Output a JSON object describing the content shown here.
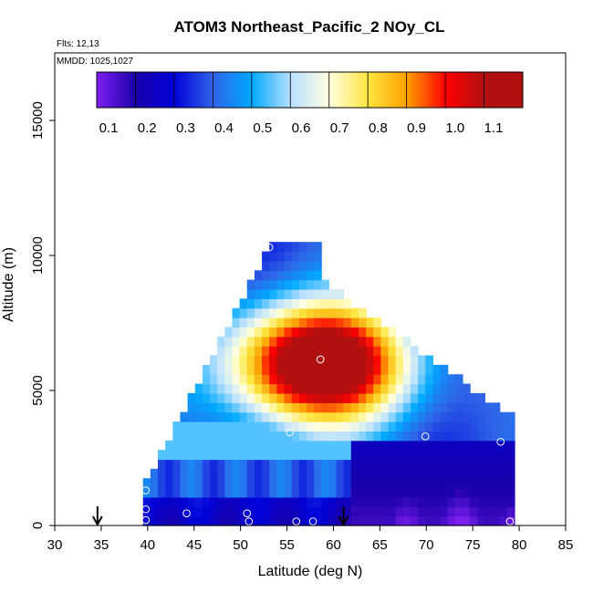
{
  "chart_data": {
    "type": "heatmap",
    "title": "ATOM3 Northeast_Pacific_2 NOy_CL",
    "annotations": [
      "Flts: 12,13",
      "MMDD: 1025,1027"
    ],
    "xlabel": "Latitude (deg N)",
    "ylabel": "Altitude (m)",
    "xlim": [
      30,
      85
    ],
    "ylim": [
      0,
      17500
    ],
    "xticks": [
      "30",
      "35",
      "40",
      "45",
      "50",
      "55",
      "60",
      "65",
      "70",
      "75",
      "80",
      "85"
    ],
    "yticks": [
      "0",
      "5000",
      "10000",
      "15000"
    ],
    "colorbar": {
      "placement": "top-inside",
      "range": [
        0.05,
        1.17
      ],
      "ticks": [
        "0.1",
        "0.2",
        "0.3",
        "0.4",
        "0.5",
        "0.6",
        "0.7",
        "0.8",
        "0.9",
        "1.0",
        "1.1"
      ],
      "colors": [
        "#7d1ff0",
        "#1a00a8",
        "#0000d8",
        "#2f64e8",
        "#00aaff",
        "#b8e0ff",
        "#ffffe0",
        "#ffe640",
        "#ffa000",
        "#ff0000",
        "#b01010"
      ]
    },
    "field": {
      "lat_range": [
        39.5,
        79
      ],
      "alt_range": [
        0,
        10500
      ],
      "peak": {
        "lat": 58.5,
        "alt": 6000,
        "value": 1.05
      },
      "low_region": {
        "lat": 70,
        "alt": 1500,
        "value": 0.08
      }
    },
    "markers": {
      "arrows_lat": [
        34.6,
        61.1
      ],
      "points": [
        {
          "lat": 53.1,
          "alt": 10300
        },
        {
          "lat": 58.6,
          "alt": 6150
        },
        {
          "lat": 55.3,
          "alt": 3450
        },
        {
          "lat": 69.9,
          "alt": 3300
        },
        {
          "lat": 78.0,
          "alt": 3100
        },
        {
          "lat": 39.8,
          "alt": 1300
        },
        {
          "lat": 39.8,
          "alt": 600
        },
        {
          "lat": 39.8,
          "alt": 200
        },
        {
          "lat": 44.2,
          "alt": 450
        },
        {
          "lat": 50.7,
          "alt": 450
        },
        {
          "lat": 50.9,
          "alt": 150
        },
        {
          "lat": 56.0,
          "alt": 150
        },
        {
          "lat": 57.8,
          "alt": 150
        },
        {
          "lat": 79.0,
          "alt": 150
        }
      ]
    }
  }
}
